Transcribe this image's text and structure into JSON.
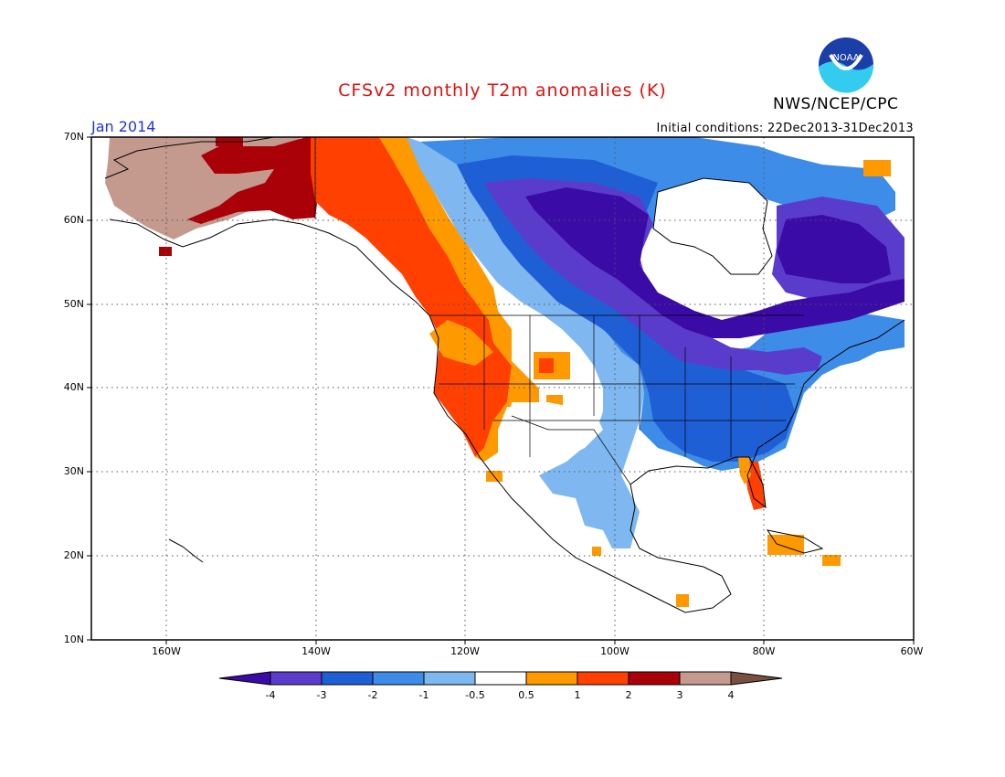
{
  "title": "CFSv2 monthly T2m anomalies (K)",
  "organization": "NWS/NCEP/CPC",
  "logo_text": "NOAA",
  "month_label": "Jan 2014",
  "initial_conditions": "Initial conditions: 22Dec2013-31Dec2013",
  "map": {
    "lat_ticks": [
      "70N",
      "60N",
      "50N",
      "40N",
      "30N",
      "20N",
      "10N"
    ],
    "lon_ticks": [
      "160W",
      "140W",
      "120W",
      "100W",
      "80W",
      "60W"
    ],
    "grid": true
  },
  "colorbar": {
    "labels": [
      "-4",
      "-3",
      "-2",
      "-1",
      "-0.5",
      "0.5",
      "1",
      "2",
      "3",
      "4"
    ],
    "colors": [
      "#3a0ba6",
      "#5a3ccc",
      "#1f5fd6",
      "#3d8ce8",
      "#7fb8f0",
      "#ffffff",
      "#ff9900",
      "#ff4000",
      "#aa0008",
      "#c49a8e",
      "#7a5040"
    ]
  },
  "colors": {
    "title": "#e01010",
    "month": "#2233dd"
  }
}
